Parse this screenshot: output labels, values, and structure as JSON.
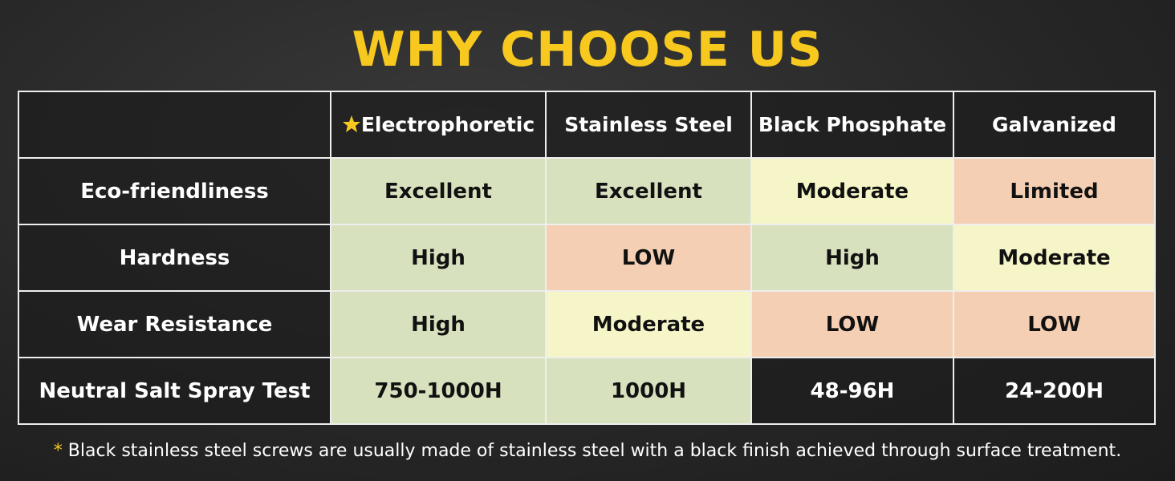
{
  "header": {
    "title": "WHY CHOOSE US"
  },
  "table": {
    "columns": [
      "Electrophoretic",
      "Stainless Steel",
      "Black Phosphate",
      "Galvanized"
    ],
    "rows": [
      [
        "Eco-friendliness",
        "Excellent",
        "Excellent",
        "Moderate",
        "Limited"
      ],
      [
        "Hardness",
        "High",
        "LOW",
        "High",
        "Moderate"
      ],
      [
        "Wear Resistance",
        "High",
        "Moderate",
        "LOW",
        "LOW"
      ],
      [
        "Neutral Salt Spray Test",
        "750-1000H",
        "1000H",
        "48-96H",
        "24-200H"
      ]
    ]
  },
  "footnote": {
    "mark": "*",
    "text": "Black stainless steel screws are usually made of stainless steel with a black finish achieved through surface treatment."
  }
}
